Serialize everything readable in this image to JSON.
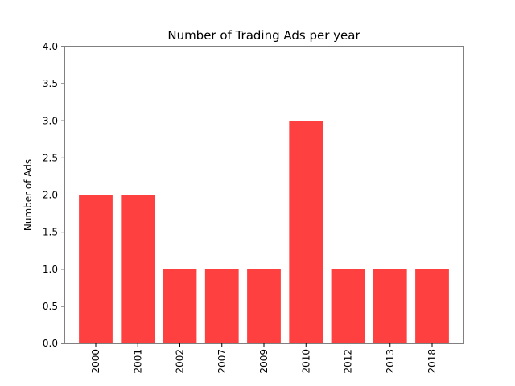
{
  "chart_data": {
    "type": "bar",
    "title": "Number of Trading Ads per year",
    "xlabel": "",
    "ylabel": "Number of Ads",
    "categories": [
      "2000",
      "2001",
      "2002",
      "2007",
      "2009",
      "2010",
      "2012",
      "2013",
      "2018"
    ],
    "values": [
      2,
      2,
      1,
      1,
      1,
      3,
      1,
      1,
      1
    ],
    "ylim": [
      0,
      4.0
    ],
    "yticks": [
      "0.0",
      "0.5",
      "1.0",
      "1.5",
      "2.0",
      "2.5",
      "3.0",
      "3.5",
      "4.0"
    ],
    "bar_color": "#ff4040",
    "grid": false,
    "legend": "none"
  }
}
